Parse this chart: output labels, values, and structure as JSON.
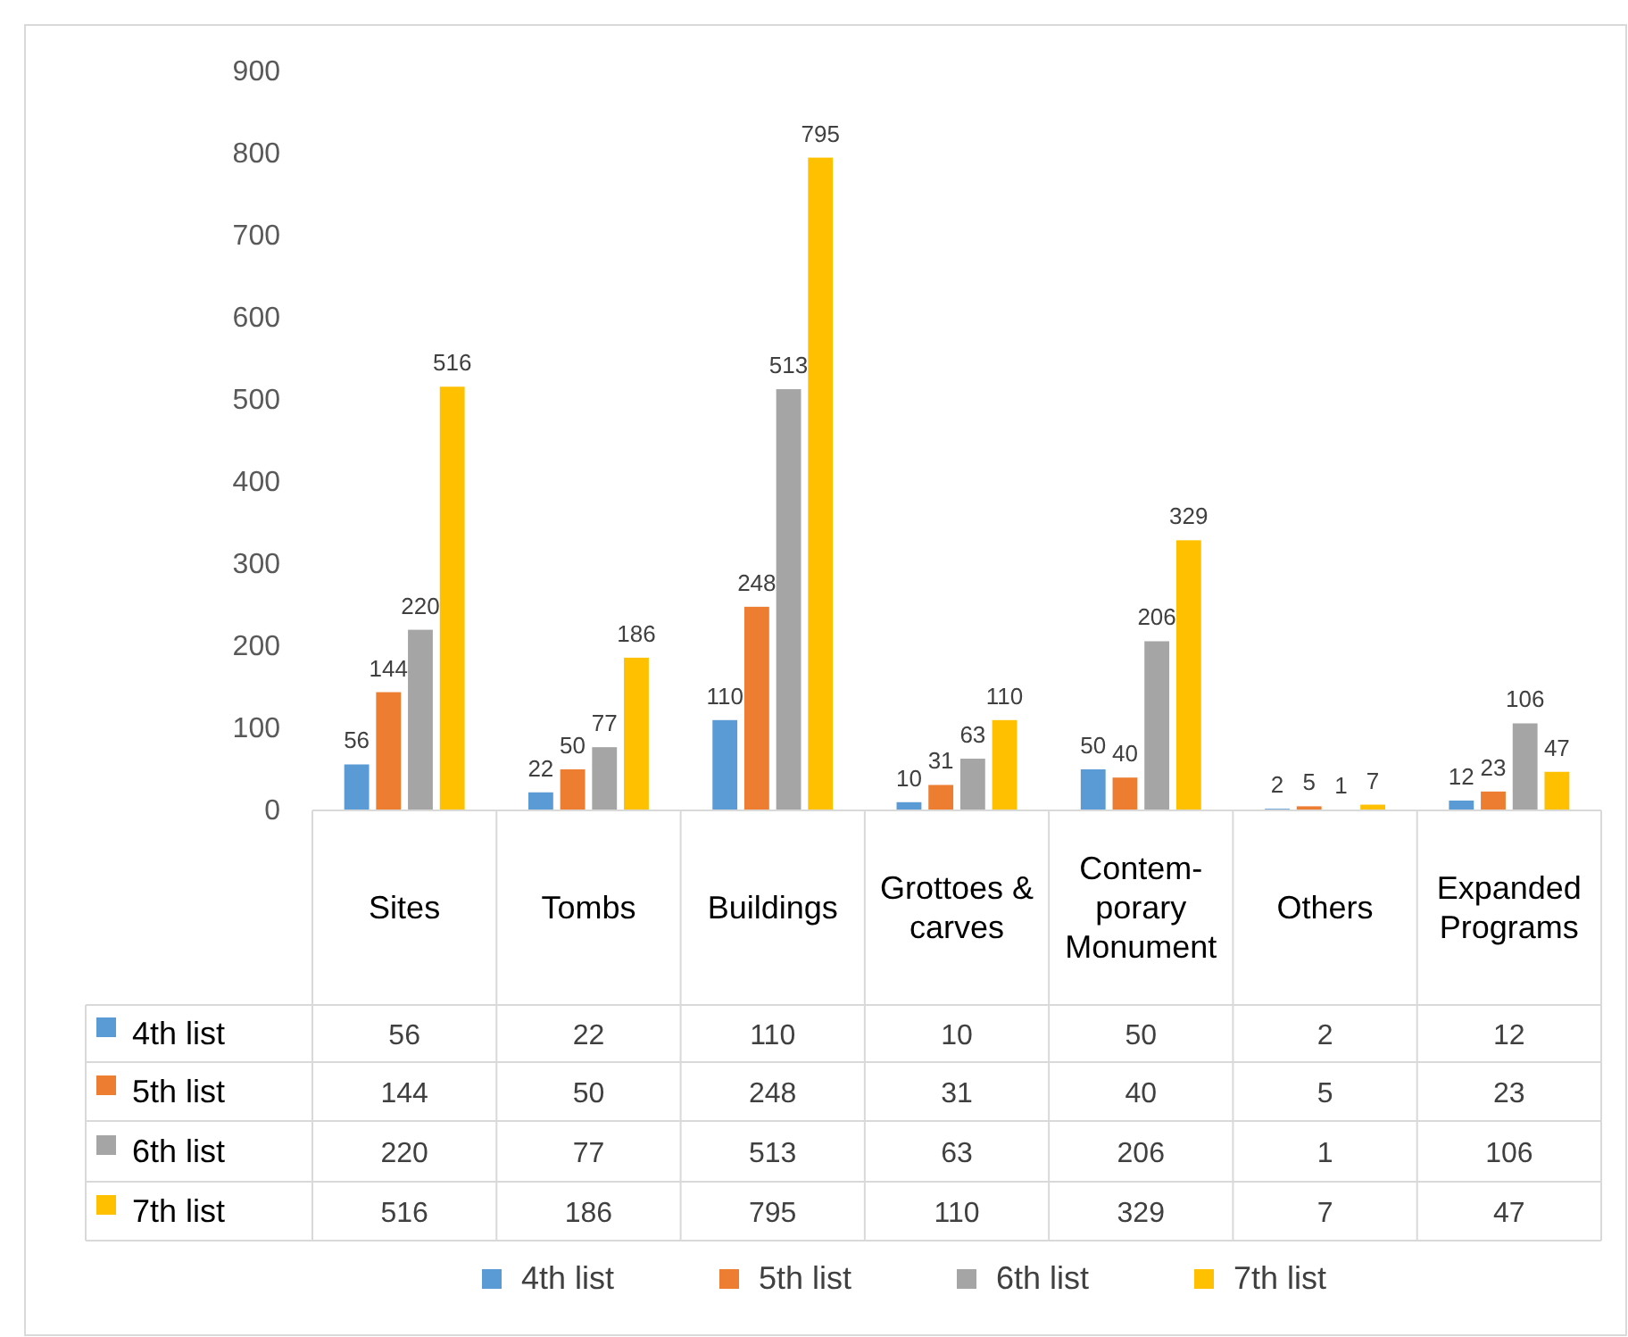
{
  "chart_data": {
    "type": "bar",
    "categories": [
      "Sites",
      "Tombs",
      "Buildings",
      "Grottoes & carves",
      "Contem-porary Monument",
      "Others",
      "Expanded Programs"
    ],
    "series": [
      {
        "name": "4th list",
        "color": "#5b9bd5",
        "values": [
          56,
          22,
          110,
          10,
          50,
          2,
          12
        ]
      },
      {
        "name": "5th list",
        "color": "#ed7d31",
        "values": [
          144,
          50,
          248,
          31,
          40,
          5,
          23
        ]
      },
      {
        "name": "6th list",
        "color": "#a5a5a5",
        "values": [
          220,
          77,
          513,
          63,
          206,
          1,
          106
        ]
      },
      {
        "name": "7th list",
        "color": "#ffc000",
        "values": [
          516,
          186,
          795,
          110,
          329,
          7,
          47
        ]
      }
    ],
    "annotations": [
      "56",
      "22",
      "110",
      "10",
      "50",
      "2",
      "12",
      "144",
      "50",
      "248",
      "31",
      "40",
      "5",
      "23",
      "220",
      "77",
      "513",
      "63",
      "206",
      "1",
      "106",
      "516",
      "186",
      "795",
      "110",
      "329",
      "7",
      "47"
    ],
    "ylim": [
      0,
      900
    ],
    "yticks": [
      0,
      100,
      200,
      300,
      400,
      500,
      600,
      700,
      800,
      900
    ],
    "data_labels": true,
    "legend": "bottom"
  }
}
